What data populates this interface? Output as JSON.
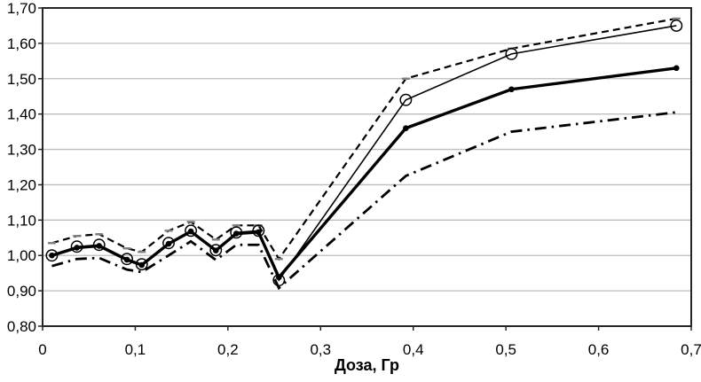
{
  "figure": {
    "background": "#ffffff"
  },
  "colors": {
    "series": "#000000",
    "grid": "#bdbdbd",
    "axis": "#262626",
    "dash_marker": "#7f7f7f",
    "text": "#000000"
  },
  "chart_data": {
    "type": "line",
    "title": "",
    "xlabel": "Доза, Гр",
    "ylabel": "",
    "xlim": [
      0,
      0.7
    ],
    "ylim": [
      0.8,
      1.7
    ],
    "grid": "horizontal",
    "legend": "none",
    "x_ticks": [
      0,
      0.1,
      0.2,
      0.3,
      0.4,
      0.5,
      0.6,
      0.7
    ],
    "x_tick_labels": [
      "0",
      "0,1",
      "0,2",
      "0,3",
      "0,4",
      "0,5",
      "0,6",
      "0,7"
    ],
    "y_ticks": [
      0.8,
      0.9,
      1.0,
      1.1,
      1.2,
      1.3,
      1.4,
      1.5,
      1.6,
      1.7
    ],
    "y_tick_labels": [
      "0,80",
      "0,90",
      "1,00",
      "1,10",
      "1,20",
      "1,30",
      "1,40",
      "1,50",
      "1,60",
      "1,70"
    ],
    "x": [
      0.01,
      0.037,
      0.061,
      0.091,
      0.107,
      0.136,
      0.16,
      0.187,
      0.209,
      0.233,
      0.255,
      0.392,
      0.506,
      0.684
    ],
    "series": [
      {
        "name": "upper-dashed-line",
        "line": "dashed",
        "marker": "gray-dash",
        "width": 2.2,
        "values": [
          1.035,
          1.055,
          1.06,
          1.02,
          1.01,
          1.07,
          1.095,
          1.045,
          1.085,
          1.085,
          0.99,
          1.5,
          1.585,
          1.67
        ]
      },
      {
        "name": "dash-dot-line",
        "line": "dashdot",
        "marker": "none",
        "width": 2.8,
        "values": [
          0.97,
          0.99,
          0.993,
          0.96,
          0.953,
          1.0,
          1.04,
          0.987,
          1.03,
          1.03,
          0.908,
          1.225,
          1.35,
          1.405
        ]
      },
      {
        "name": "bold-solid-dot-line",
        "line": "solid",
        "marker": "dot",
        "width": 3.4,
        "values": [
          1.0,
          1.022,
          1.027,
          0.988,
          0.973,
          1.033,
          1.068,
          1.014,
          1.062,
          1.066,
          0.938,
          1.36,
          1.47,
          1.53
        ]
      },
      {
        "name": "thin-solid-circle-line",
        "line": "solid",
        "marker": "circle-open",
        "width": 1.6,
        "values": [
          1.0,
          1.025,
          1.03,
          0.99,
          0.975,
          1.035,
          1.07,
          1.015,
          1.065,
          1.07,
          0.93,
          1.44,
          1.57,
          1.65
        ]
      }
    ]
  }
}
